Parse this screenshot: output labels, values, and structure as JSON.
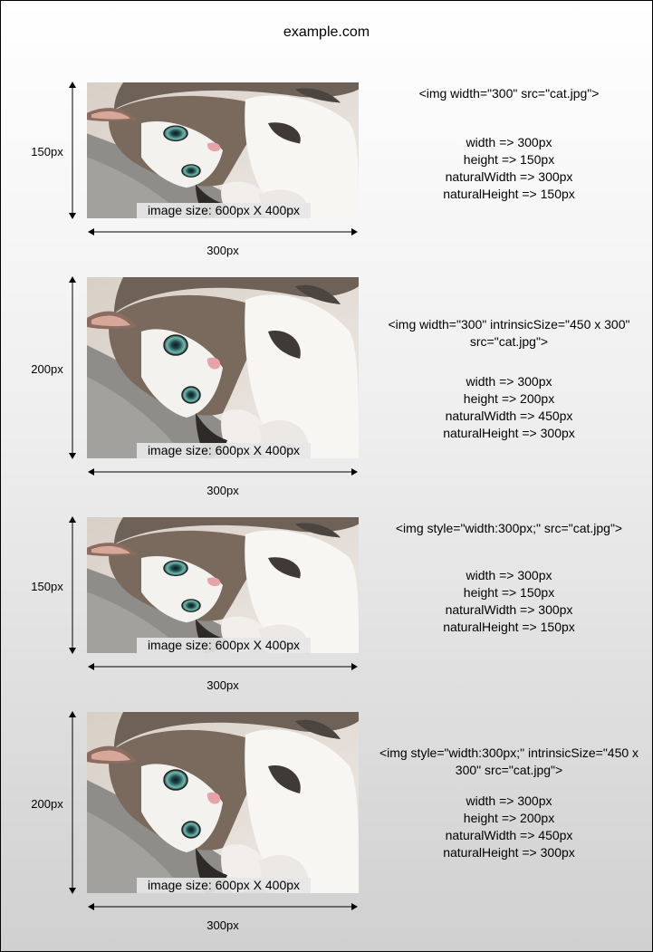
{
  "header": {
    "title": "example.com"
  },
  "image_caption": "image size: 600px X 400px",
  "examples": [
    {
      "code": "<img width=\"300\" src=\"cat.jpg\">",
      "height_label": "150px",
      "width_label": "300px",
      "props": [
        "width => 300px",
        "height => 150px",
        "naturalWidth => 300px",
        "naturalHeight => 150px"
      ]
    },
    {
      "code": "<img width=\"300\" intrinsicSize=\"450 x 300\" src=\"cat.jpg\">",
      "height_label": "200px",
      "width_label": "300px",
      "props": [
        "width => 300px",
        "height => 200px",
        "naturalWidth => 450px",
        "naturalHeight => 300px"
      ]
    },
    {
      "code": "<img style=\"width:300px;\" src=\"cat.jpg\">",
      "height_label": "150px",
      "width_label": "300px",
      "props": [
        "width => 300px",
        "height => 150px",
        "naturalWidth => 300px",
        "naturalHeight => 150px"
      ]
    },
    {
      "code": "<img style=\"width:300px;\" intrinsicSize=\"450 x 300\" src=\"cat.jpg\">",
      "height_label": "200px",
      "width_label": "300px",
      "props": [
        "width => 300px",
        "height => 200px",
        "naturalWidth => 450px",
        "naturalHeight => 300px"
      ]
    }
  ]
}
